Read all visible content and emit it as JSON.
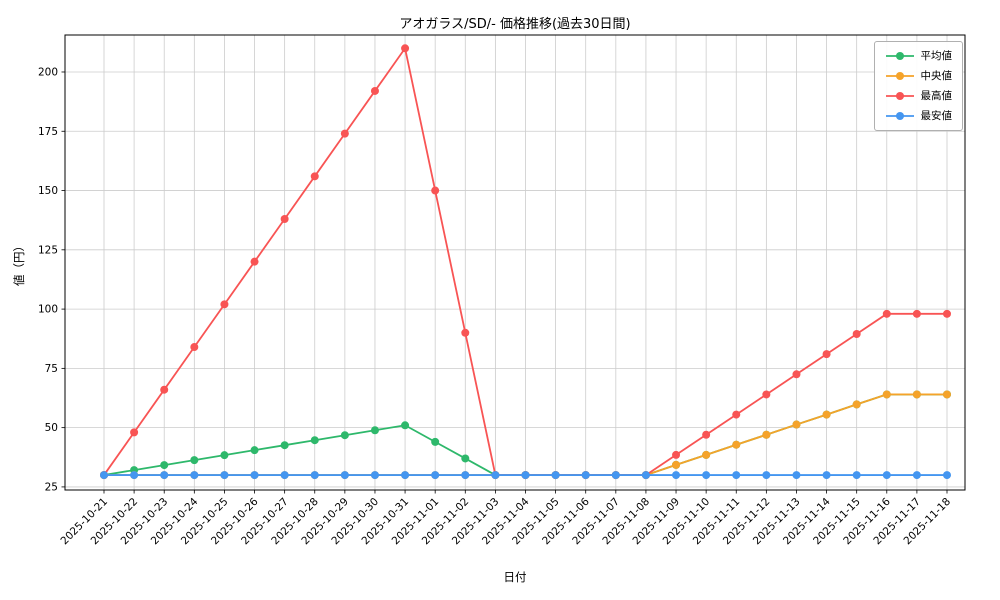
{
  "chart_data": {
    "type": "line",
    "title": "アオガラス/SD/- 価格推移(過去30日間)",
    "xlabel": "日付",
    "ylabel": "値（円）",
    "categories": [
      "2025-10-21",
      "2025-10-22",
      "2025-10-23",
      "2025-10-24",
      "2025-10-25",
      "2025-10-26",
      "2025-10-27",
      "2025-10-28",
      "2025-10-29",
      "2025-10-30",
      "2025-10-31",
      "2025-11-01",
      "2025-11-02",
      "2025-11-03",
      "2025-11-04",
      "2025-11-05",
      "2025-11-06",
      "2025-11-07",
      "2025-11-08",
      "2025-11-09",
      "2025-11-10",
      "2025-11-11",
      "2025-11-12",
      "2025-11-13",
      "2025-11-14",
      "2025-11-15",
      "2025-11-16",
      "2025-11-17",
      "2025-11-18"
    ],
    "series": [
      {
        "key": "average",
        "name": "平均値",
        "color": "#2eb86b",
        "values": [
          30,
          32.1,
          34.2,
          36.3,
          38.4,
          40.5,
          42.6,
          44.7,
          46.8,
          48.9,
          51,
          44,
          37,
          30,
          30,
          30,
          30,
          30,
          30,
          34.3,
          38.5,
          42.8,
          47,
          51.3,
          55.5,
          59.8,
          64,
          64,
          64
        ]
      },
      {
        "key": "median",
        "name": "中央値",
        "color": "#f5a32a",
        "values": [
          30,
          30,
          30,
          30,
          30,
          30,
          30,
          30,
          30,
          30,
          30,
          30,
          30,
          30,
          30,
          30,
          30,
          30,
          30,
          34.3,
          38.5,
          42.8,
          47,
          51.3,
          55.5,
          59.8,
          64,
          64,
          64
        ]
      },
      {
        "key": "max",
        "name": "最高値",
        "color": "#f85454",
        "values": [
          30,
          48,
          66,
          84,
          102,
          120,
          138,
          156,
          174,
          192,
          210,
          150,
          90,
          30,
          30,
          30,
          30,
          30,
          30,
          38.5,
          47,
          55.5,
          64,
          72.5,
          81,
          89.5,
          98,
          98,
          98
        ]
      },
      {
        "key": "min",
        "name": "最安値",
        "color": "#4496f0",
        "values": [
          30,
          30,
          30,
          30,
          30,
          30,
          30,
          30,
          30,
          30,
          30,
          30,
          30,
          30,
          30,
          30,
          30,
          30,
          30,
          30,
          30,
          30,
          30,
          30,
          30,
          30,
          30,
          30,
          30
        ]
      }
    ],
    "yticks": [
      25,
      50,
      75,
      100,
      125,
      150,
      175,
      200
    ],
    "ylim": [
      23.7,
      215.6
    ],
    "grid": true,
    "legend_position": "upper right"
  }
}
